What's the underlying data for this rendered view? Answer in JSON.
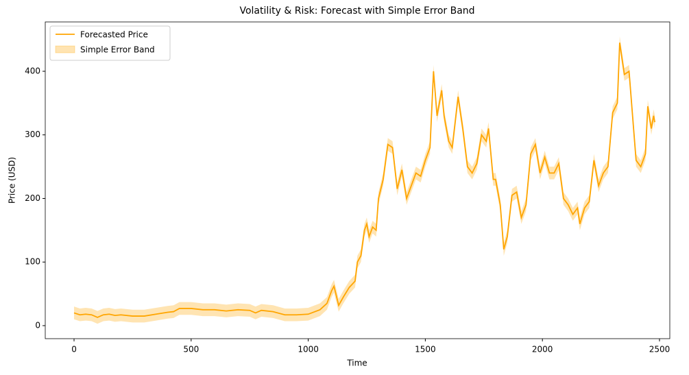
{
  "chart_data": {
    "type": "line",
    "title": "Volatility & Risk: Forecast with Simple Error Band",
    "x_label": "Time",
    "y_label": "Price (USD)",
    "xlim": [
      -123,
      2544
    ],
    "ylim": [
      -20.5,
      477.6
    ],
    "xticks": [
      0,
      500,
      1000,
      1500,
      2000,
      2500
    ],
    "yticks": [
      0,
      100,
      200,
      300,
      400
    ],
    "legend": "upper left",
    "x": [
      0,
      25,
      50,
      75,
      100,
      125,
      150,
      175,
      200,
      250,
      300,
      350,
      400,
      425,
      450,
      500,
      550,
      600,
      650,
      700,
      750,
      775,
      800,
      850,
      900,
      950,
      1000,
      1050,
      1080,
      1100,
      1110,
      1130,
      1150,
      1175,
      1200,
      1210,
      1225,
      1240,
      1250,
      1260,
      1275,
      1290,
      1300,
      1320,
      1340,
      1360,
      1380,
      1400,
      1420,
      1440,
      1460,
      1480,
      1500,
      1520,
      1535,
      1550,
      1570,
      1580,
      1600,
      1615,
      1640,
      1660,
      1680,
      1700,
      1720,
      1740,
      1760,
      1770,
      1790,
      1800,
      1820,
      1835,
      1850,
      1870,
      1890,
      1910,
      1930,
      1950,
      1970,
      1990,
      2010,
      2030,
      2050,
      2070,
      2090,
      2110,
      2130,
      2150,
      2160,
      2180,
      2200,
      2220,
      2240,
      2260,
      2280,
      2300,
      2320,
      2330,
      2350,
      2370,
      2385,
      2400,
      2420,
      2440,
      2450,
      2465,
      2475,
      2480
    ],
    "series": [
      {
        "name": "Forecasted Price",
        "color": "#ffa500",
        "values": [
          20,
          17,
          18,
          17,
          13,
          17,
          18,
          16,
          17,
          15,
          15,
          18,
          21,
          22,
          27,
          27,
          25,
          25,
          23,
          25,
          24,
          20,
          24,
          22,
          17,
          17,
          18,
          25,
          35,
          55,
          62,
          32,
          45,
          60,
          70,
          100,
          110,
          150,
          160,
          140,
          155,
          150,
          200,
          230,
          285,
          280,
          215,
          245,
          200,
          220,
          240,
          235,
          260,
          280,
          400,
          330,
          370,
          330,
          290,
          280,
          360,
          310,
          250,
          240,
          255,
          300,
          290,
          310,
          230,
          230,
          190,
          120,
          140,
          205,
          210,
          170,
          190,
          270,
          285,
          240,
          265,
          240,
          240,
          255,
          200,
          190,
          175,
          185,
          160,
          185,
          195,
          260,
          220,
          240,
          250,
          335,
          350,
          445,
          395,
          400,
          330,
          260,
          250,
          270,
          345,
          310,
          330,
          320
        ]
      },
      {
        "name": "Simple Error Band",
        "color": "#ffa500",
        "opacity": 0.3,
        "error": 10
      }
    ]
  }
}
